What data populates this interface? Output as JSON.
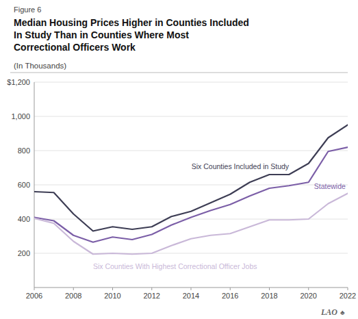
{
  "chart_data": {
    "type": "line",
    "title": "Median Housing Prices Higher in Counties Included\nIn Study Than in Counties Where Most\nCorrectional Officers Work",
    "subtitle": "(In Thousands)",
    "annotations": [
      "Figure 6",
      "LAO",
      "♣"
    ],
    "x": [
      2006,
      2007,
      2008,
      2009,
      2010,
      2011,
      2012,
      2013,
      2014,
      2015,
      2016,
      2017,
      2018,
      2019,
      2020,
      2021,
      2022
    ],
    "series": [
      {
        "name": "Six Counties Included in Study",
        "color": "#3d3d54",
        "values": [
          560,
          555,
          430,
          330,
          355,
          340,
          355,
          415,
          445,
          495,
          545,
          615,
          660,
          660,
          725,
          875,
          950
        ]
      },
      {
        "name": "Statewide",
        "color": "#7b5ea7",
        "values": [
          410,
          390,
          305,
          265,
          295,
          280,
          310,
          365,
          410,
          450,
          485,
          535,
          580,
          595,
          615,
          795,
          820
        ]
      },
      {
        "name": "Six Counties With Highest Correctional Officer Jobs",
        "color": "#c9b8d8",
        "values": [
          405,
          375,
          270,
          195,
          200,
          195,
          200,
          245,
          285,
          305,
          315,
          355,
          395,
          395,
          400,
          490,
          550
        ]
      }
    ],
    "xlim": [
      2006,
      2022
    ],
    "xticks": [
      2006,
      2008,
      2010,
      2012,
      2014,
      2016,
      2018,
      2020,
      2022
    ],
    "ylim": [
      0,
      1200
    ],
    "yticks": [
      200,
      400,
      600,
      800,
      {
        "value": 1000,
        "label": "1,000"
      },
      {
        "value": 1200,
        "label": "$1,200"
      }
    ],
    "grid": true
  }
}
